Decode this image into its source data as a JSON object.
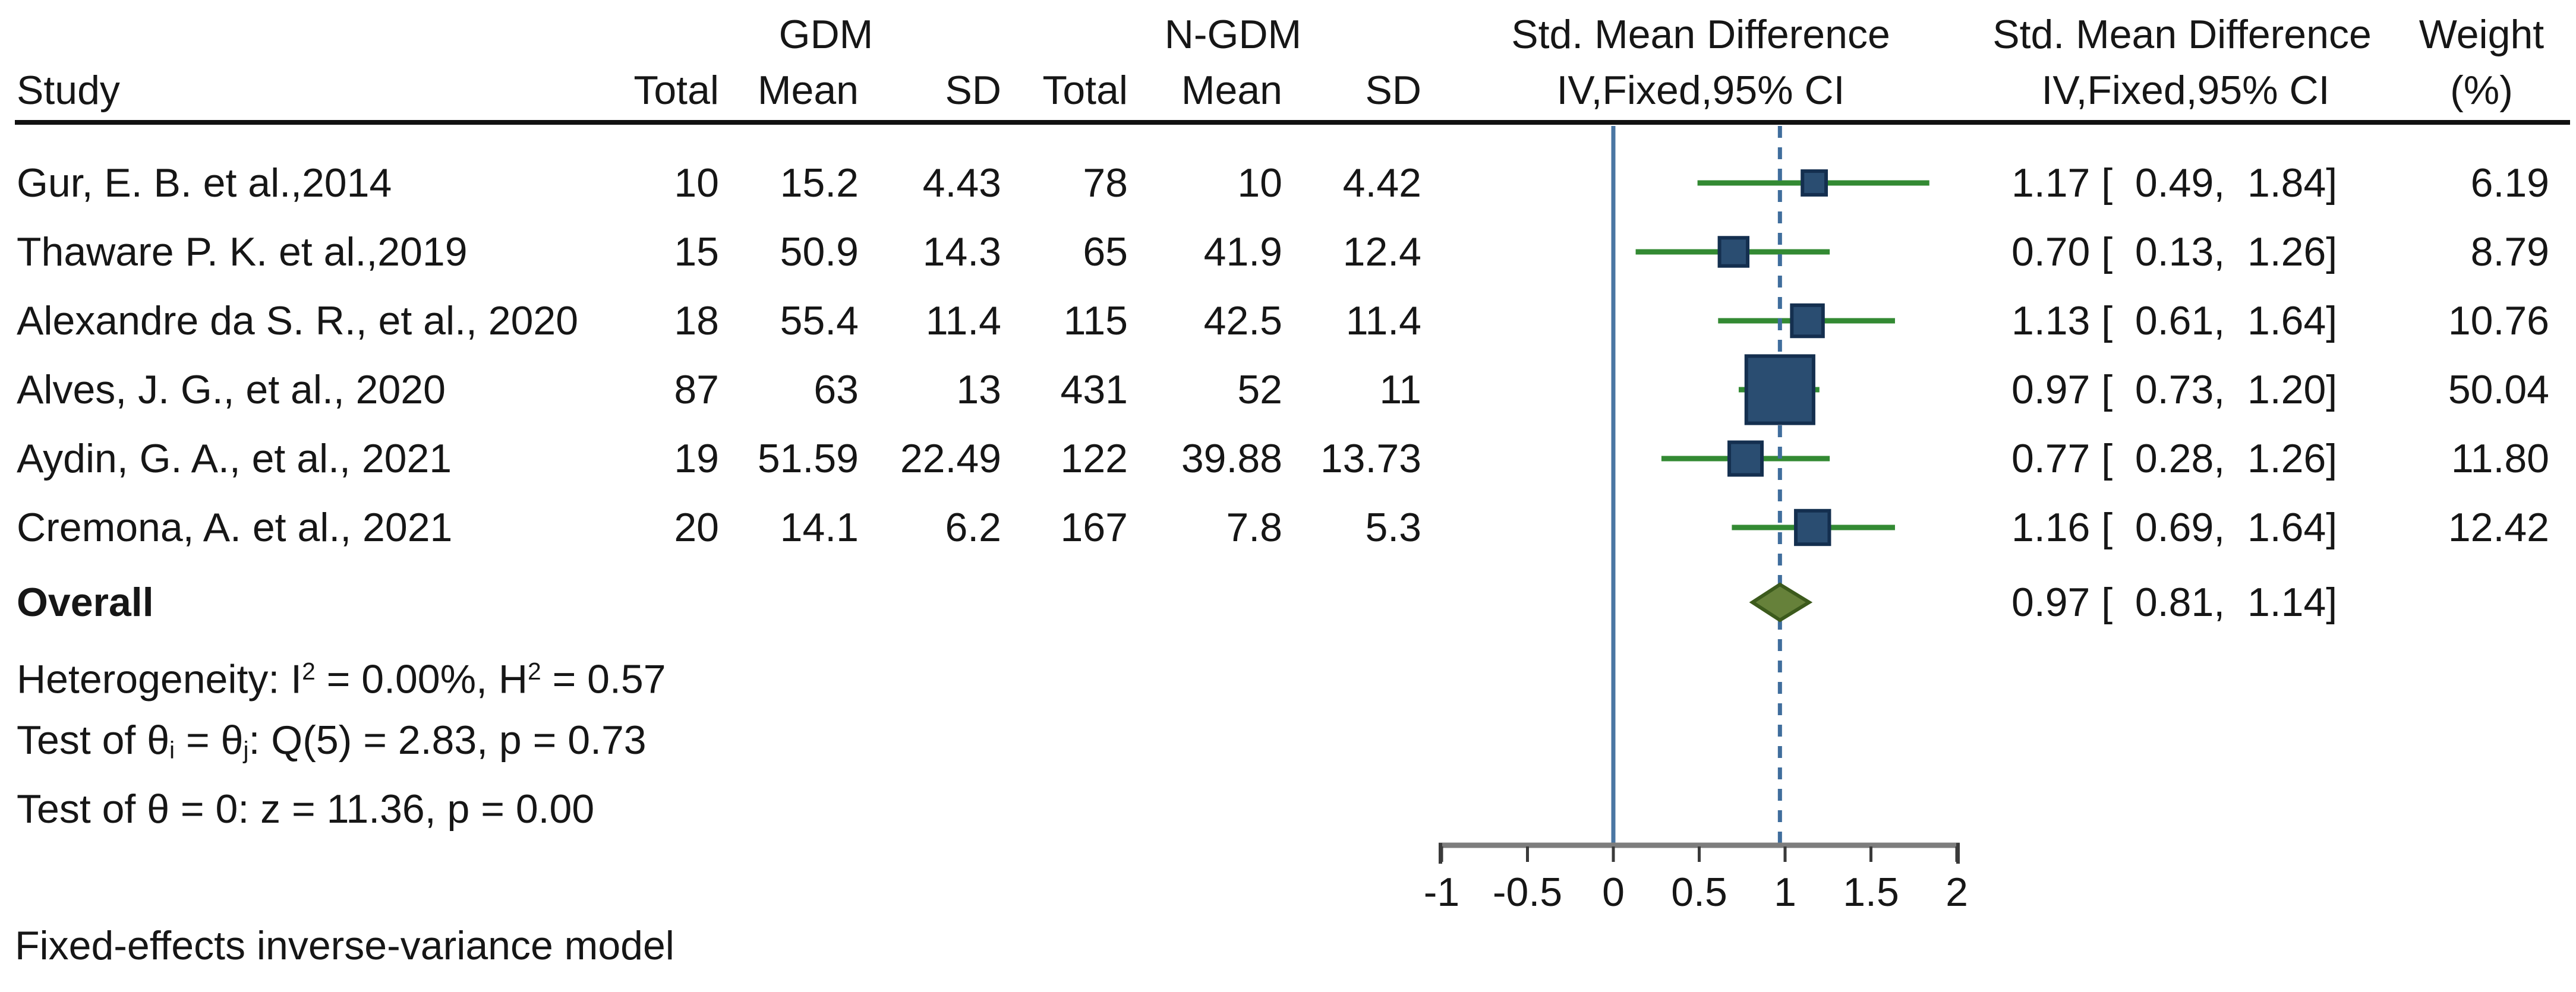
{
  "header": {
    "study": "Study",
    "gdm_group": "GDM",
    "ngdm_group": "N-GDM",
    "col_total_gdm": "Total",
    "col_mean_gdm": "Mean",
    "col_sd_gdm": "SD",
    "col_total_ngdm": "Total",
    "col_mean_ngdm": "Mean",
    "col_sd_ngdm": "SD",
    "smd_plot_line1": "Std. Mean Difference",
    "smd_plot_line2": "IV,Fixed,95% CI",
    "smd_text_line1": "Std. Mean Difference",
    "smd_text_line2": "IV,Fixed,95% CI",
    "weight_line1": "Weight",
    "weight_line2": "(%)"
  },
  "chart_data": {
    "type": "forest",
    "title": "",
    "effect_measure": "Std. Mean Difference",
    "model_label": "IV,Fixed,95% CI",
    "x_axis": {
      "tick_labels": [
        "-1",
        "-0.5",
        "0",
        "0.5",
        "1",
        "1.5",
        "2"
      ],
      "tick_values": [
        -1,
        -0.5,
        0,
        0.5,
        1,
        1.5,
        2
      ],
      "range": [
        -1,
        2
      ],
      "reference_line": 0,
      "overall_dashed_line": 0.97
    },
    "studies": [
      {
        "name": "Gur, E. B. et al.,2014",
        "gdm_total": "10",
        "gdm_mean": "15.2",
        "gdm_sd": "4.43",
        "ngdm_total": "78",
        "ngdm_mean": "10",
        "ngdm_sd": "4.42",
        "estimate": 1.17,
        "ci_low": 0.49,
        "ci_high": 1.84,
        "ci_label": "1.17 [  0.49,  1.84]",
        "weight": 6.19,
        "weight_label": "6.19"
      },
      {
        "name": "Thaware P. K. et al.,2019",
        "gdm_total": "15",
        "gdm_mean": "50.9",
        "gdm_sd": "14.3",
        "ngdm_total": "65",
        "ngdm_mean": "41.9",
        "ngdm_sd": "12.4",
        "estimate": 0.7,
        "ci_low": 0.13,
        "ci_high": 1.26,
        "ci_label": "0.70 [  0.13,  1.26]",
        "weight": 8.79,
        "weight_label": "8.79"
      },
      {
        "name": "Alexandre da S. R., et al., 2020",
        "gdm_total": "18",
        "gdm_mean": "55.4",
        "gdm_sd": "11.4",
        "ngdm_total": "115",
        "ngdm_mean": "42.5",
        "ngdm_sd": "11.4",
        "estimate": 1.13,
        "ci_low": 0.61,
        "ci_high": 1.64,
        "ci_label": "1.13 [  0.61,  1.64]",
        "weight": 10.76,
        "weight_label": "10.76"
      },
      {
        "name": "Alves, J. G., et al., 2020",
        "gdm_total": "87",
        "gdm_mean": "63",
        "gdm_sd": "13",
        "ngdm_total": "431",
        "ngdm_mean": "52",
        "ngdm_sd": "11",
        "estimate": 0.97,
        "ci_low": 0.73,
        "ci_high": 1.2,
        "ci_label": "0.97 [  0.73,  1.20]",
        "weight": 50.04,
        "weight_label": "50.04"
      },
      {
        "name": "Aydin, G. A., et al., 2021",
        "gdm_total": "19",
        "gdm_mean": "51.59",
        "gdm_sd": "22.49",
        "ngdm_total": "122",
        "ngdm_mean": "39.88",
        "ngdm_sd": "13.73",
        "estimate": 0.77,
        "ci_low": 0.28,
        "ci_high": 1.26,
        "ci_label": "0.77 [  0.28,  1.26]",
        "weight": 11.8,
        "weight_label": "11.80"
      },
      {
        "name": "Cremona, A. et al., 2021",
        "gdm_total": "20",
        "gdm_mean": "14.1",
        "gdm_sd": "6.2",
        "ngdm_total": "167",
        "ngdm_mean": "7.8",
        "ngdm_sd": "5.3",
        "estimate": 1.16,
        "ci_low": 0.69,
        "ci_high": 1.64,
        "ci_label": "1.16 [  0.69,  1.64]",
        "weight": 12.42,
        "weight_label": "12.42"
      }
    ],
    "overall": {
      "label": "Overall",
      "estimate": 0.97,
      "ci_low": 0.81,
      "ci_high": 1.14,
      "ci_label": "0.97 [  0.81,  1.14]"
    },
    "legend_position": "none",
    "grid": false
  },
  "stats": {
    "heterogeneity": [
      {
        "t": "Heterogeneity: I"
      },
      {
        "sup": "2"
      },
      {
        "t": " = 0.00%, H"
      },
      {
        "sup": "2"
      },
      {
        "t": " = 0.57"
      }
    ],
    "test_theta_eq": [
      {
        "t": "Test of θ"
      },
      {
        "sub": "i"
      },
      {
        "t": " = θ"
      },
      {
        "sub": "j"
      },
      {
        "t": ": Q(5) = 2.83, p = 0.73"
      }
    ],
    "test_theta_zero": [
      {
        "t": "Test of θ = 0: z = 11.36, p = 0.00"
      }
    ]
  },
  "note": "Fixed-effects inverse-variance model",
  "colors": {
    "marker_fill": "#2a4d71",
    "marker_border": "#142f4f",
    "ci_line": "#338a33",
    "diamond_fill": "#66813a",
    "diamond_border": "#3c5a1c",
    "zero_line": "#4a76a3",
    "dashed_line": "#3f6d9c",
    "axis_line": "#7d7d7d",
    "axis_tick": "#3a3a3a",
    "text": "#161616",
    "rule": "#111111"
  }
}
